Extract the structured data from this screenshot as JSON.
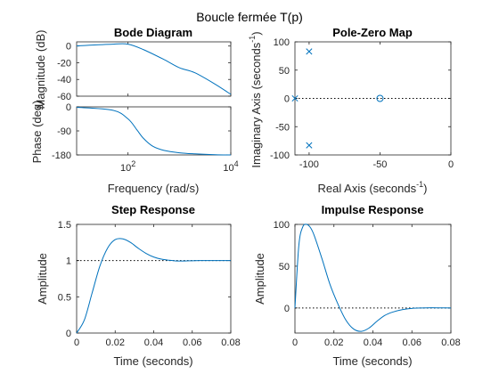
{
  "figure": {
    "suptitle": "Boucle fermée T(p)"
  },
  "colors": {
    "curve": "#0072BD",
    "axes": "#262626",
    "reference_line": "#000000"
  },
  "chart_data": [
    {
      "id": "bode",
      "type": "line",
      "title": "Bode Diagram",
      "xlabel": "Frequency  (rad/s)",
      "xscale": "log",
      "xlim": [
        10,
        10000
      ],
      "xticks": [
        {
          "value": 100,
          "base": "10",
          "exp": "2"
        },
        {
          "value": 10000,
          "base": "10",
          "exp": "4"
        }
      ],
      "magnitude": {
        "ylabel": "Magnitude (dB)",
        "ylim": [
          -60,
          5
        ],
        "yticks": [
          0,
          -20,
          -40,
          -60
        ],
        "x": [
          10,
          50,
          100,
          200,
          500,
          1000,
          2000,
          5000,
          10000
        ],
        "y": [
          0.2,
          2.2,
          2.2,
          -4.3,
          -16.1,
          -26.0,
          -32.0,
          -45.8,
          -57.8
        ]
      },
      "phase": {
        "ylabel": "Phase (deg)",
        "ylim": [
          -180,
          0
        ],
        "yticks": [
          0,
          -90,
          -180
        ],
        "x": [
          10,
          50,
          100,
          150,
          200,
          300,
          500,
          1000,
          2000,
          5000,
          10000
        ],
        "y": [
          -1.8,
          -12.5,
          -45,
          -87,
          -118,
          -147,
          -163,
          -172,
          -176,
          -179,
          -180
        ]
      },
      "grid": false
    },
    {
      "id": "pzmap",
      "type": "scatter",
      "title": "Pole-Zero Map",
      "xlabel": "Real Axis (seconds",
      "xlabel_exp": "-1",
      "xlabel_tail": ")",
      "ylabel": "Imaginary Axis (seconds",
      "ylabel_exp": "-1",
      "ylabel_tail": ")",
      "xlim": [
        -110,
        0
      ],
      "ylim": [
        -100,
        100
      ],
      "xticks": [
        -100,
        -50,
        0
      ],
      "yticks": [
        -100,
        -50,
        0,
        50,
        100
      ],
      "poles": [
        {
          "re": -100,
          "im": 83
        },
        {
          "re": -100,
          "im": -83
        },
        {
          "re": -110,
          "im": 0
        }
      ],
      "zeros": [
        {
          "re": -50,
          "im": 0
        }
      ],
      "grid": false
    },
    {
      "id": "step",
      "type": "line",
      "title": "Step Response",
      "xlabel": "Time (seconds)",
      "ylabel": "Amplitude",
      "xlim": [
        0,
        0.08
      ],
      "ylim": [
        0,
        1.5
      ],
      "xticks": [
        0,
        0.02,
        0.04,
        0.06,
        0.08
      ],
      "yticks": [
        0,
        0.5,
        1,
        1.5
      ],
      "steady_state": 1,
      "x": [
        0,
        0.004,
        0.008,
        0.012,
        0.016,
        0.02,
        0.024,
        0.028,
        0.032,
        0.036,
        0.04,
        0.044,
        0.048,
        0.052,
        0.056,
        0.06,
        0.064,
        0.068,
        0.072,
        0.076,
        0.08
      ],
      "y": [
        0,
        0.18,
        0.55,
        0.92,
        1.17,
        1.29,
        1.3,
        1.25,
        1.17,
        1.1,
        1.05,
        1.02,
        1.005,
        0.995,
        0.995,
        0.998,
        1.0,
        1.0,
        1.0,
        1.0,
        1.0
      ],
      "grid": false
    },
    {
      "id": "impulse",
      "type": "line",
      "title": "Impulse Response",
      "xlabel": "Time (seconds)",
      "ylabel": "Amplitude",
      "xlim": [
        0,
        0.08
      ],
      "ylim": [
        -30,
        100
      ],
      "xticks": [
        0,
        0.02,
        0.04,
        0.06,
        0.08
      ],
      "yticks": [
        0,
        50,
        100
      ],
      "reference": 0,
      "x": [
        0,
        0.002,
        0.004,
        0.006,
        0.008,
        0.01,
        0.014,
        0.018,
        0.022,
        0.026,
        0.03,
        0.034,
        0.038,
        0.042,
        0.046,
        0.05,
        0.055,
        0.06,
        0.065,
        0.07,
        0.075,
        0.08
      ],
      "y": [
        0,
        75,
        97,
        100,
        96,
        86,
        58,
        28,
        5,
        -14,
        -25,
        -28,
        -24,
        -16,
        -9,
        -5,
        -2,
        -0.5,
        0,
        0.2,
        0.1,
        0
      ],
      "grid": false
    }
  ]
}
